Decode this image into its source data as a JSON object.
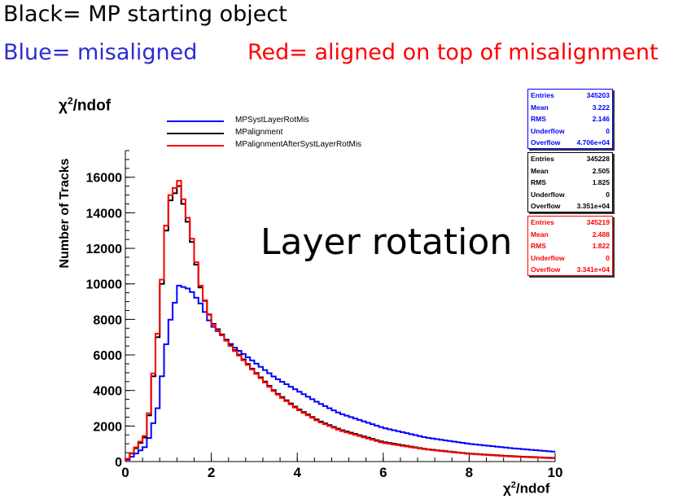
{
  "header": {
    "line1": "Black= MP starting object",
    "line2_blue": "Blue= misaligned",
    "line2_red": "Red= aligned on top of misalignment"
  },
  "colors": {
    "blue": "#0000ff",
    "black": "#000000",
    "red": "#ff0000",
    "header_blue": "#2d2dd0"
  },
  "chart_data": {
    "type": "line",
    "title": "χ²/ndof",
    "xlabel": "χ²/ndof",
    "ylabel": "Number of Tracks",
    "annotation": "Layer rotation",
    "xlim": [
      0,
      10
    ],
    "ylim": [
      0,
      17500
    ],
    "x_ticks": [
      0,
      2,
      4,
      6,
      8,
      10
    ],
    "y_ticks": [
      0,
      2000,
      4000,
      6000,
      8000,
      10000,
      12000,
      14000,
      16000
    ],
    "legend_position": "top-center",
    "x": [
      0,
      0.5,
      0.75,
      1.0,
      1.25,
      1.5,
      1.75,
      2.0,
      2.5,
      3.0,
      3.5,
      4.0,
      4.5,
      5.0,
      6.0,
      7.0,
      8.0,
      9.0,
      10.0
    ],
    "series": [
      {
        "name": "MPSystLayerRotMis",
        "color": "#0000ff",
        "values": [
          0,
          900,
          3000,
          7500,
          9900,
          9700,
          8900,
          7700,
          6500,
          5600,
          4700,
          4000,
          3300,
          2700,
          1900,
          1350,
          1000,
          750,
          550
        ]
      },
      {
        "name": "MPalignment",
        "color": "#000000",
        "values": [
          0,
          1500,
          7000,
          14500,
          15500,
          13000,
          9800,
          7900,
          6400,
          5100,
          3900,
          3000,
          2300,
          1800,
          1100,
          700,
          450,
          300,
          200
        ]
      },
      {
        "name": "MPalignmentAfterSystLayerRotMis",
        "color": "#ff0000",
        "values": [
          0,
          1600,
          7200,
          14800,
          15800,
          13200,
          9900,
          7850,
          6350,
          5050,
          3850,
          2950,
          2250,
          1750,
          1050,
          680,
          430,
          280,
          180
        ]
      }
    ],
    "stats_boxes": [
      {
        "series": "MPSystLayerRotMis",
        "color": "#0000ff",
        "entries": "345203",
        "mean": "3.222",
        "rms": "2.146",
        "underflow": "0",
        "overflow": "4.706e+04"
      },
      {
        "series": "MPalignment",
        "color": "#000000",
        "entries": "345228",
        "mean": "2.505",
        "rms": "1.825",
        "underflow": "0",
        "overflow": "3.351e+04"
      },
      {
        "series": "MPalignmentAfterSystLayerRotMis",
        "color": "#ff0000",
        "entries": "345219",
        "mean": "2.488",
        "rms": "1.822",
        "underflow": "0",
        "overflow": "3.341e+04"
      }
    ],
    "stats_labels": {
      "entries": "Entries",
      "mean": "Mean",
      "rms": "RMS",
      "underflow": "Underflow",
      "overflow": "Overflow"
    }
  }
}
